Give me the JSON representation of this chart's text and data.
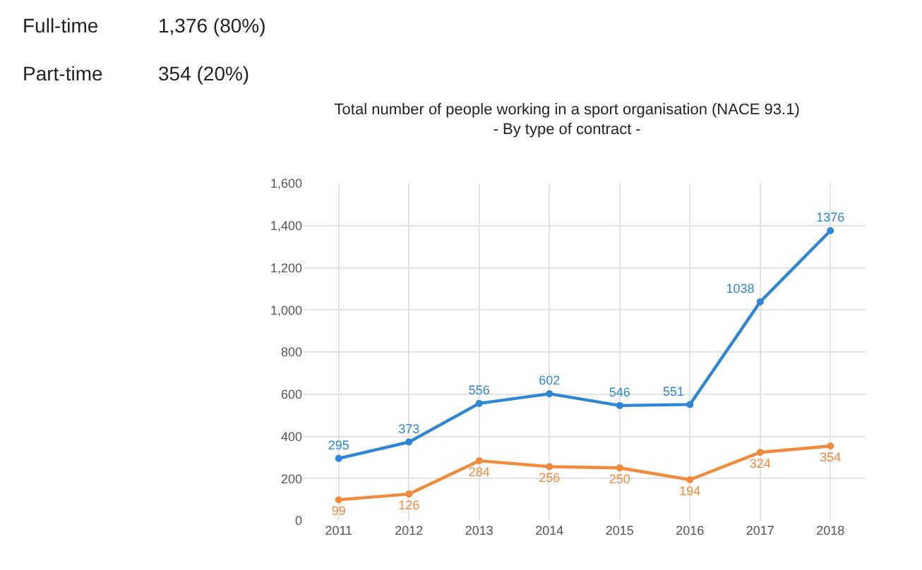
{
  "chart_data": {
    "type": "line",
    "title": "Total number of people working in a sport organisation (NACE 93.1)",
    "subtitle": "- By type of contract -",
    "categories": [
      "2011",
      "2012",
      "2013",
      "2014",
      "2015",
      "2016",
      "2017",
      "2018"
    ],
    "series": [
      {
        "color": "#2e86d4",
        "values": [
          295,
          373,
          556,
          602,
          546,
          551,
          1038,
          1376
        ]
      },
      {
        "color": "#f08a3c",
        "values": [
          99,
          126,
          284,
          256,
          250,
          194,
          324,
          354
        ]
      }
    ],
    "ylim": [
      0,
      1600
    ],
    "yticks": [
      0,
      200,
      400,
      600,
      800,
      {
        "value": 1000,
        "label": "1,000"
      },
      {
        "value": 1200,
        "label": "1,200"
      },
      {
        "value": 1400,
        "label": "1,400"
      },
      {
        "value": 1600,
        "label": "1,600"
      }
    ],
    "grid": true,
    "marker": "circle",
    "line_style": "solid",
    "data_labels": true,
    "annotations": [
      "Full-time",
      "1,376 (80%)",
      "Part-time",
      "354 (20%)"
    ]
  }
}
